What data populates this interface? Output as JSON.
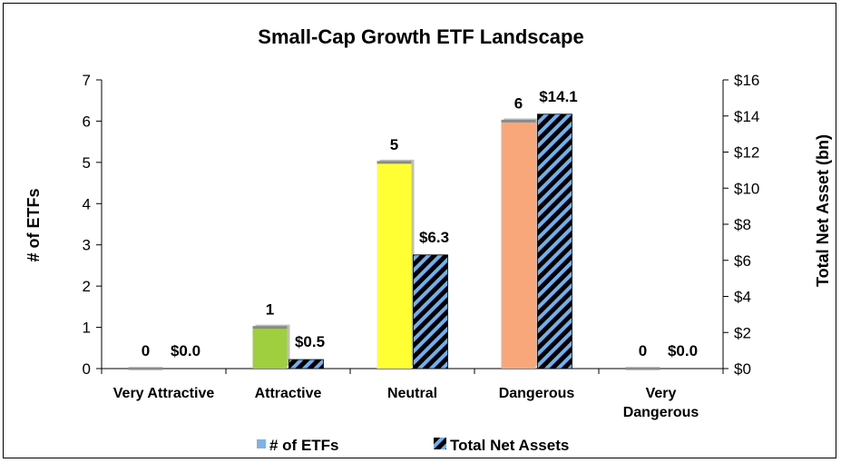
{
  "chart_data": {
    "type": "bar",
    "title": "Small-Cap Growth ETF Landscape",
    "categories": [
      "Very Attractive",
      "Attractive",
      "Neutral",
      "Dangerous",
      "Very\nDangerous"
    ],
    "series": [
      {
        "name": "# of ETFs",
        "axis": "left",
        "values": [
          0,
          1,
          5,
          6,
          0
        ],
        "labels": [
          "0",
          "1",
          "5",
          "6",
          "0"
        ],
        "colors": [
          "#7fb2e5",
          "#9fcf3f",
          "#ffff33",
          "#f8a77a",
          "#7fb2e5"
        ]
      },
      {
        "name": "Total Net Assets",
        "axis": "right",
        "values": [
          0.0,
          0.5,
          6.3,
          14.1,
          0.0
        ],
        "labels": [
          "$0.0",
          "$0.5",
          "$6.3",
          "$14.1",
          "$0.0"
        ],
        "pattern": "black-blue diagonal stripes"
      }
    ],
    "ylabel_left": "# of ETFs",
    "ylabel_right": "Total Net Asset (bn)",
    "ylim_left": [
      0,
      7
    ],
    "ylim_right": [
      0,
      16
    ],
    "yticks_left": [
      "0",
      "1",
      "2",
      "3",
      "4",
      "5",
      "6",
      "7"
    ],
    "yticks_right": [
      "$0",
      "$2",
      "$4",
      "$6",
      "$8",
      "$10",
      "$12",
      "$14",
      "$16"
    ],
    "grid": false,
    "legend": "bottom",
    "stripe_colors": {
      "dark": "#000000",
      "light": "#6fb0f0"
    }
  }
}
